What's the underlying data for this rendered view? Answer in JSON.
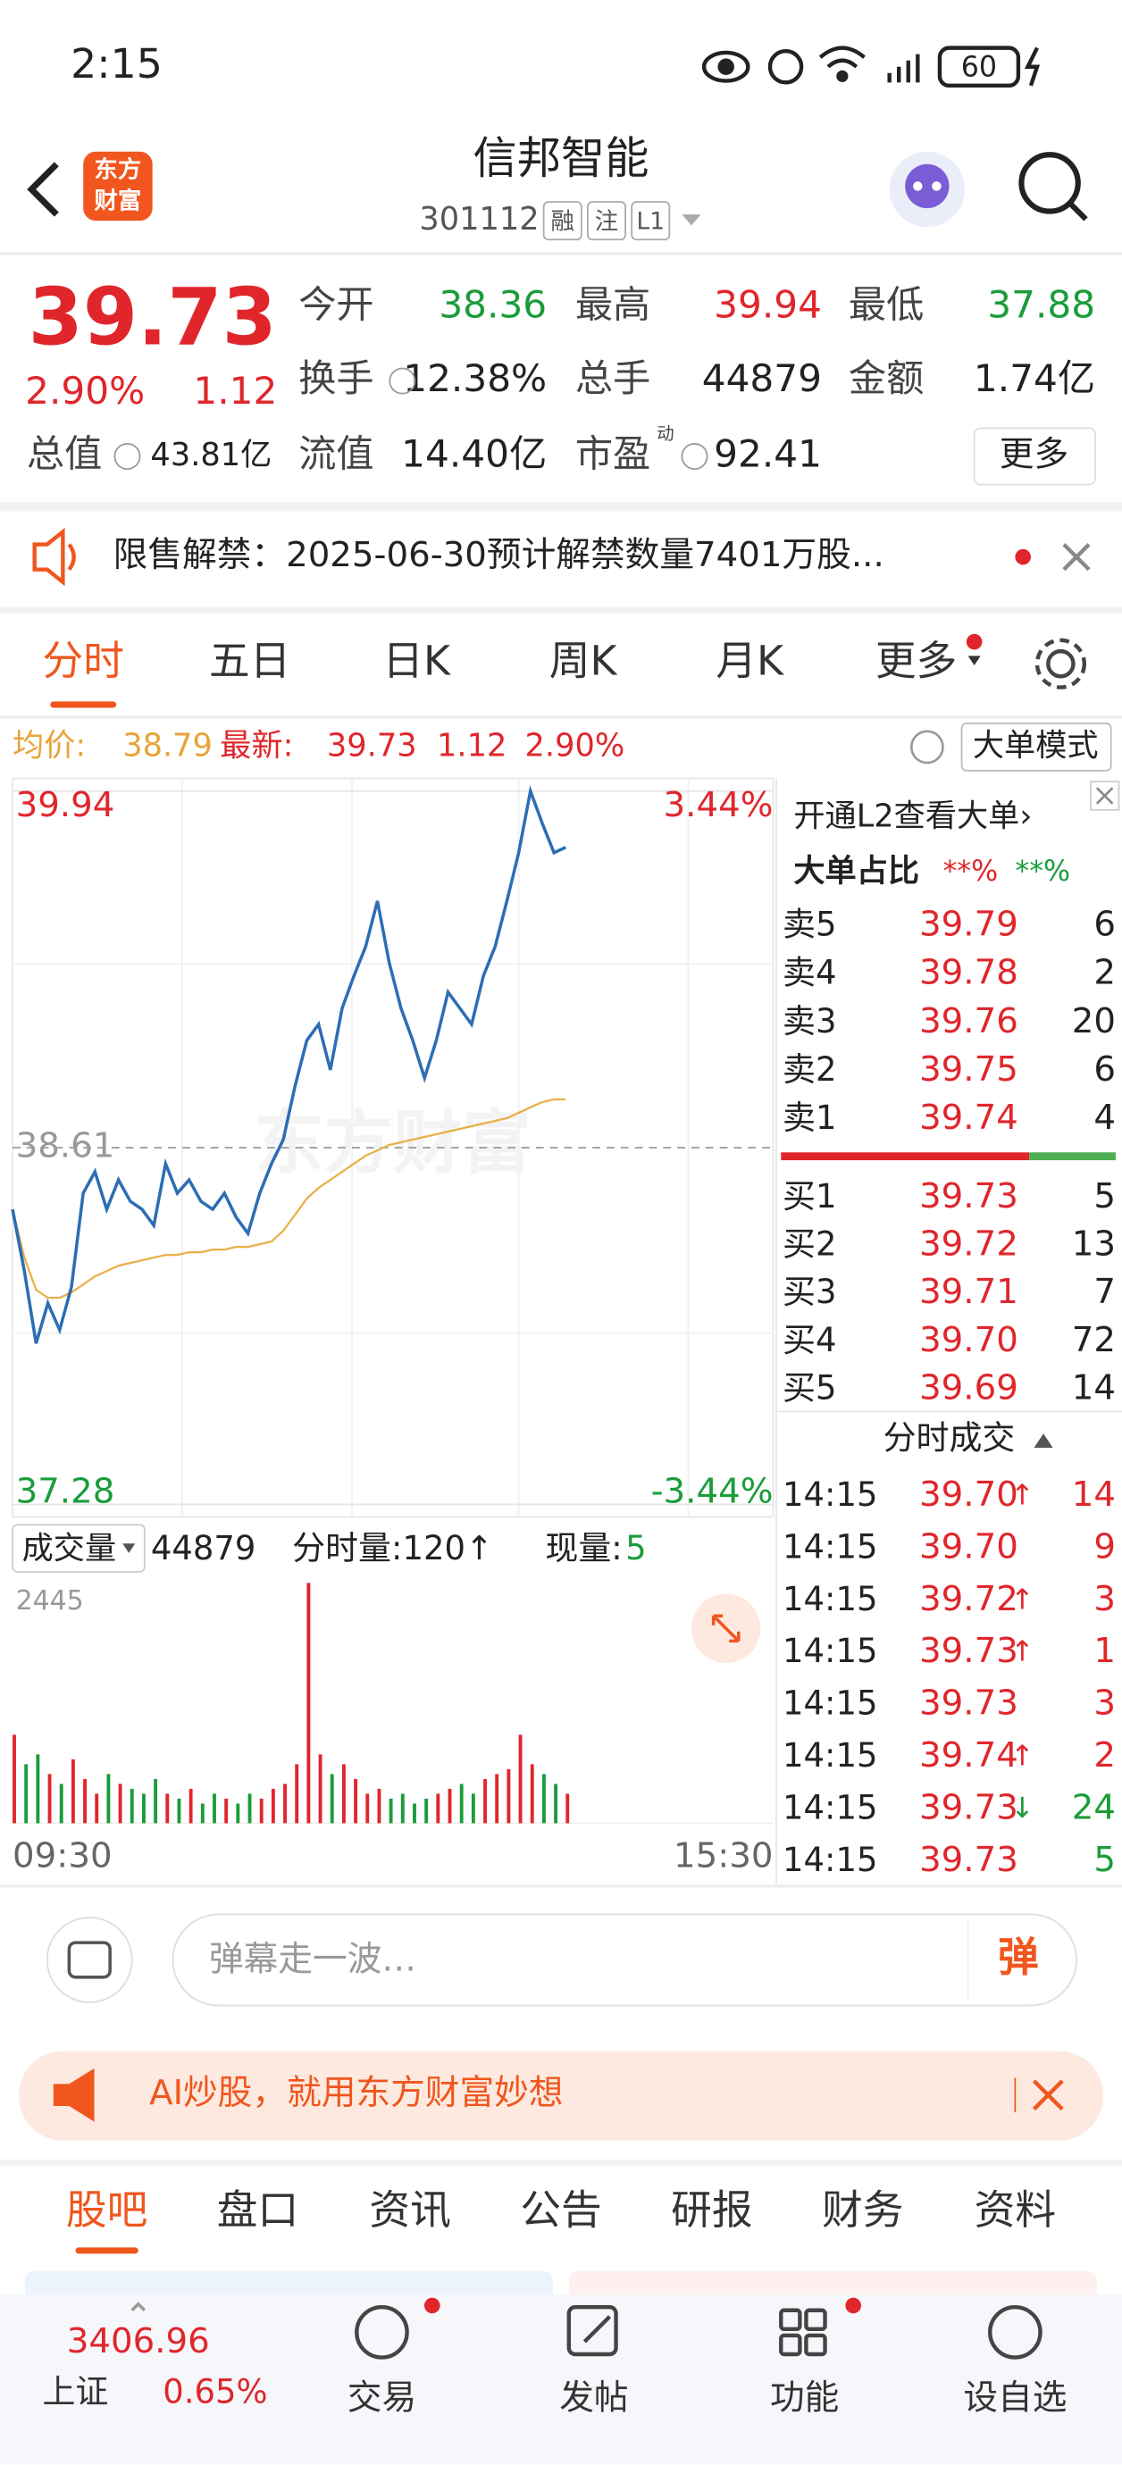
{
  "status_bar": {
    "time": "2:15",
    "battery": "60"
  },
  "header": {
    "logo": [
      "东方",
      "财富"
    ],
    "title": "信邦智能",
    "code": "301112",
    "badges": [
      "融",
      "注",
      "L1"
    ]
  },
  "quote": {
    "price": "39.73",
    "change_pct": "2.90%",
    "change": "1.12",
    "stats": [
      {
        "label": "今开",
        "value": "38.36"
      },
      {
        "label": "最高",
        "value": "39.94"
      },
      {
        "label": "最低",
        "value": "37.88"
      },
      {
        "label": "换手",
        "value": "12.38%"
      },
      {
        "label": "总手",
        "value": "44879"
      },
      {
        "label": "金额",
        "value": "1.74亿"
      },
      {
        "label": "总值",
        "value": "43.81亿"
      },
      {
        "label": "流值",
        "value": "14.40亿"
      },
      {
        "label": "市盈",
        "sup": "动",
        "value": "92.41"
      }
    ],
    "more": "更多"
  },
  "notice": {
    "text": "限售解禁：2025-06-30预计解禁数量7401万股..."
  },
  "chart_tabs": [
    "分时",
    "五日",
    "日K",
    "周K",
    "月K",
    "更多"
  ],
  "info_bar": {
    "avg_label": "均价:",
    "avg": "38.79",
    "last_label": "最新:",
    "last": "39.73",
    "change": "1.12",
    "change_pct": "2.90%",
    "mode": "大单模式"
  },
  "chart_data": [
    {
      "type": "line",
      "watermark": "东方财富",
      "series": [
        {
          "color": "#2d6db4",
          "values": [
            38.38,
            38.15,
            37.88,
            38.03,
            37.93,
            38.09,
            38.44,
            38.52,
            38.38,
            38.49,
            38.41,
            38.38,
            38.32,
            38.55,
            38.44,
            38.49,
            38.41,
            38.38,
            38.44,
            38.35,
            38.29,
            38.44,
            38.55,
            38.64,
            38.84,
            39.01,
            39.07,
            38.9,
            39.13,
            39.25,
            39.36,
            39.53,
            39.3,
            39.13,
            39.01,
            38.87,
            39.01,
            39.19,
            39.13,
            39.07,
            39.25,
            39.36,
            39.53,
            39.71,
            39.94,
            39.82,
            39.71,
            39.73
          ]
        },
        {
          "color": "#e8b04a",
          "values": [
            38.38,
            38.2,
            38.08,
            38.05,
            38.05,
            38.07,
            38.1,
            38.13,
            38.15,
            38.17,
            38.18,
            38.19,
            38.2,
            38.21,
            38.21,
            38.22,
            38.22,
            38.23,
            38.23,
            38.24,
            38.24,
            38.25,
            38.26,
            38.3,
            38.36,
            38.42,
            38.46,
            38.49,
            38.52,
            38.55,
            38.58,
            38.6,
            38.62,
            38.63,
            38.64,
            38.65,
            38.66,
            38.67,
            38.68,
            38.69,
            38.7,
            38.71,
            38.72,
            38.74,
            38.76,
            38.78,
            38.79,
            38.79
          ]
        }
      ],
      "ylim": [
        37.28,
        39.94
      ],
      "yticks": [
        39.94,
        38.61,
        37.28
      ],
      "y2lim": [
        -3.44,
        3.44
      ],
      "y2ticks": [
        {
          "value": 3.44,
          "label": "3.44%"
        },
        {
          "value": -3.44,
          "label": "-3.44%"
        }
      ],
      "x_labels": [
        "09:30",
        "15:30"
      ]
    },
    {
      "type": "bar",
      "up_color": "#e0262b",
      "down_color": "#1a9c3a",
      "values": [
        900,
        600,
        700,
        500,
        400,
        650,
        450,
        300,
        500,
        400,
        350,
        300,
        450,
        300,
        250,
        350,
        200,
        300,
        250,
        200,
        300,
        250,
        350,
        400,
        600,
        2445,
        700,
        500,
        600,
        450,
        300,
        350,
        250,
        300,
        200,
        250,
        300,
        350,
        400,
        300,
        450,
        500,
        550,
        900,
        600,
        500,
        400,
        300
      ],
      "ylim": [
        0,
        2445
      ],
      "yticks": [
        2445
      ]
    }
  ],
  "volume_header": {
    "label": "成交量",
    "total": "44879",
    "minute_volume": "分时量:120↑",
    "current_label": "现量:",
    "current": "5"
  },
  "order_book": {
    "l2_prompt": "开通L2查看大单›",
    "ratio_label": "大单占比",
    "ratio_buy": "**%",
    "ratio_sell": "**%",
    "asks": [
      {
        "level": "卖5",
        "price": "39.79",
        "volume": "6"
      },
      {
        "level": "卖4",
        "price": "39.78",
        "volume": "2"
      },
      {
        "level": "卖3",
        "price": "39.76",
        "volume": "20"
      },
      {
        "level": "卖2",
        "price": "39.75",
        "volume": "6"
      },
      {
        "level": "卖1",
        "price": "39.74",
        "volume": "4"
      }
    ],
    "bids": [
      {
        "level": "买1",
        "price": "39.73",
        "volume": "5"
      },
      {
        "level": "买2",
        "price": "39.72",
        "volume": "13"
      },
      {
        "level": "买3",
        "price": "39.71",
        "volume": "7"
      },
      {
        "level": "买4",
        "price": "39.70",
        "volume": "72"
      },
      {
        "level": "买5",
        "price": "39.69",
        "volume": "14"
      }
    ]
  },
  "trades": {
    "title": "分时成交",
    "rows": [
      {
        "time": "14:15",
        "price": "39.70",
        "arrow": "↑",
        "volume": "14",
        "color": "#e0262b"
      },
      {
        "time": "14:15",
        "price": "39.70",
        "volume": "9",
        "color": "#e0262b"
      },
      {
        "time": "14:15",
        "price": "39.72",
        "arrow": "↑",
        "volume": "3",
        "color": "#e0262b"
      },
      {
        "time": "14:15",
        "price": "39.73",
        "arrow": "↑",
        "volume": "1",
        "color": "#e0262b"
      },
      {
        "time": "14:15",
        "price": "39.73",
        "volume": "3",
        "color": "#e0262b"
      },
      {
        "time": "14:15",
        "price": "39.74",
        "arrow": "↑",
        "volume": "2",
        "color": "#e0262b"
      },
      {
        "time": "14:15",
        "price": "39.73",
        "arrow": "↓",
        "volume": "24",
        "color": "#1a9c3a"
      },
      {
        "time": "14:15",
        "price": "39.73",
        "volume": "5",
        "color": "#1a9c3a"
      }
    ]
  },
  "comment": {
    "placeholder": "弹幕走一波…",
    "button": "弹"
  },
  "banner": {
    "text": "AI炒股，就用东方财富妙想"
  },
  "section_tabs": [
    "股吧",
    "盘口",
    "资讯",
    "公告",
    "研报",
    "财务",
    "资料"
  ],
  "bottom_nav": {
    "index_value": "3406.96",
    "index_name": "上证",
    "index_change": "0.65%",
    "items": [
      "交易",
      "发帖",
      "功能",
      "设自选"
    ]
  }
}
